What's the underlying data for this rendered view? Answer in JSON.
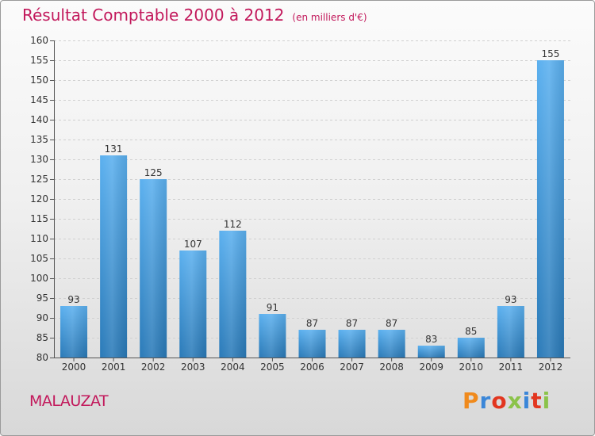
{
  "title": "Résultat Comptable 2000 à 2012",
  "unit_note": "(en milliers d'€)",
  "place": "MALAUZAT",
  "logo": {
    "text": "Proxiti",
    "colors": [
      "#f08a1c",
      "#3a86d8",
      "#e2361f",
      "#8bc34a",
      "#3a86d8",
      "#e2361f",
      "#8bc34a"
    ]
  },
  "colors": {
    "title": "#c2185b",
    "bar_top": "#5bb0ef",
    "bar_bottom": "#2a7ab8"
  },
  "chart_data": {
    "type": "bar",
    "title": "Résultat Comptable 2000 à 2012",
    "xlabel": "",
    "ylabel": "",
    "ylim": [
      80,
      160
    ],
    "yticks": [
      80,
      85,
      90,
      95,
      100,
      105,
      110,
      115,
      120,
      125,
      130,
      135,
      140,
      145,
      150,
      155,
      160
    ],
    "categories": [
      "2000",
      "2001",
      "2002",
      "2003",
      "2004",
      "2005",
      "2006",
      "2007",
      "2008",
      "2009",
      "2010",
      "2011",
      "2012"
    ],
    "values": [
      93,
      131,
      125,
      107,
      112,
      91,
      87,
      87,
      87,
      83,
      85,
      93,
      155
    ],
    "grid": true,
    "legend": "none"
  }
}
